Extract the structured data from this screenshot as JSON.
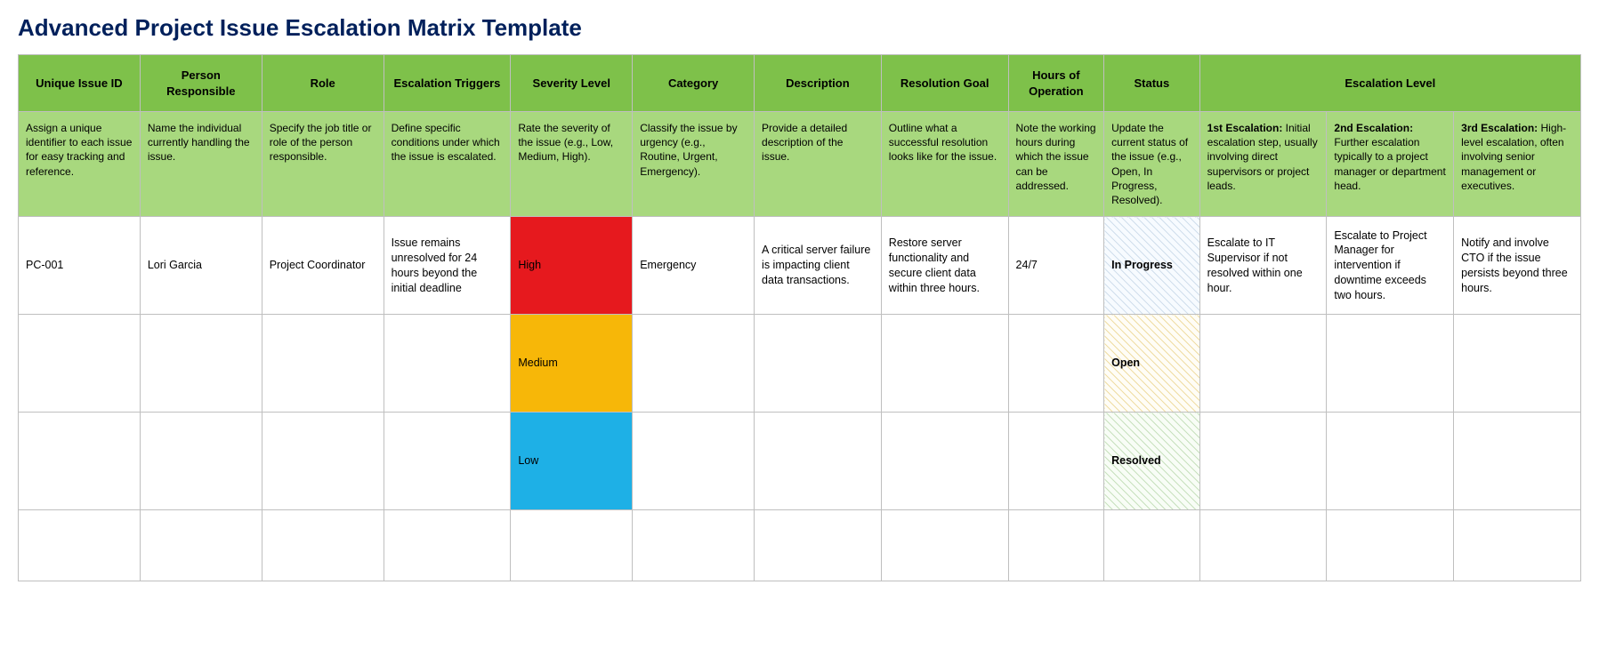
{
  "title": "Advanced Project Issue Escalation Matrix Template",
  "headers": {
    "uid": "Unique Issue ID",
    "person": "Person Responsible",
    "role": "Role",
    "triggers": "Escalation Triggers",
    "severity": "Severity Level",
    "category": "Category",
    "description": "Description",
    "goal": "Resolution Goal",
    "hours": "Hours of Operation",
    "status": "Status",
    "esclevel": "Escalation Level"
  },
  "desc": {
    "uid": "Assign a unique identifier to each issue for easy tracking and reference.",
    "person": "Name the individual currently handling the issue.",
    "role": "Specify the job title or role of the person responsible.",
    "triggers": "Define specific conditions under which the issue is escalated.",
    "severity": "Rate the severity of the issue (e.g., Low, Medium, High).",
    "category": "Classify the issue by urgency (e.g., Routine, Urgent, Emergency).",
    "description": "Provide a detailed description of the issue.",
    "goal": "Outline what a successful resolution looks like for the issue.",
    "hours": "Note the working hours during which the issue can be addressed.",
    "status": "Update the current status of the issue (e.g., Open, In Progress, Resolved).",
    "e1_lead": "1st Escalation:",
    "e1": " Initial escalation step, usually involving direct supervisors or project leads.",
    "e2_lead": "2nd Escalation:",
    "e2": " Further escalation typically to a project manager or department head.",
    "e3_lead": "3rd Escalation:",
    "e3": " High-level escalation, often involving senior management or executives."
  },
  "rows": [
    {
      "uid": "PC-001",
      "person": "Lori Garcia",
      "role": "Project Coordinator",
      "triggers": "Issue remains unresolved for 24 hours beyond the initial deadline",
      "severity": "High",
      "category": "Emergency",
      "description": "A critical server failure is impacting client data transactions.",
      "goal": "Restore server functionality and secure client data within three hours.",
      "hours": "24/7",
      "status": "In Progress",
      "e1": "Escalate to IT Supervisor if not resolved within one hour.",
      "e2": "Escalate to Project Manager for intervention if downtime exceeds two hours.",
      "e3": "Notify and involve CTO if the issue persists beyond three hours."
    },
    {
      "severity": "Medium",
      "status": "Open"
    },
    {
      "severity": "Low",
      "status": "Resolved"
    }
  ],
  "colors": {
    "title": "#00205b",
    "header_bg": "#7ec14a",
    "desc_bg": "#a8d87e",
    "border": "#bfbfbf",
    "sev_high": "#e6191e",
    "sev_medium": "#f7b708",
    "sev_low": "#1eb0e6"
  }
}
